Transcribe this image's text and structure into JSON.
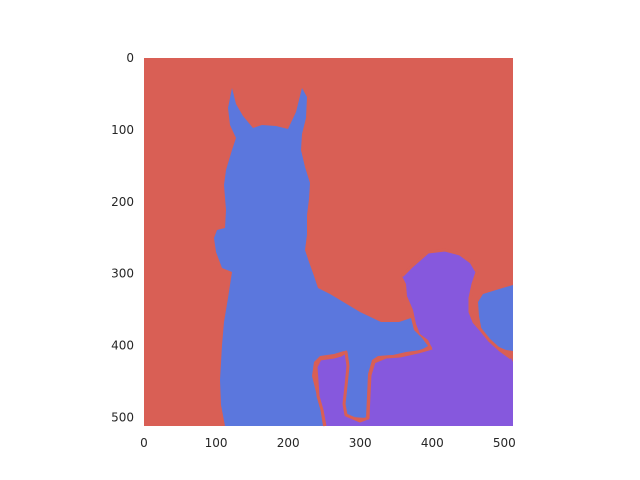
{
  "figure": {
    "x_ticks": [
      "0",
      "100",
      "200",
      "300",
      "400",
      "500"
    ],
    "y_ticks": [
      "0",
      "100",
      "200",
      "300",
      "400",
      "500"
    ],
    "colors": {
      "background": "#d95f55",
      "horse": "#5b77dd",
      "person": "#8658dd"
    },
    "segments": [
      "background",
      "horse",
      "person"
    ]
  }
}
